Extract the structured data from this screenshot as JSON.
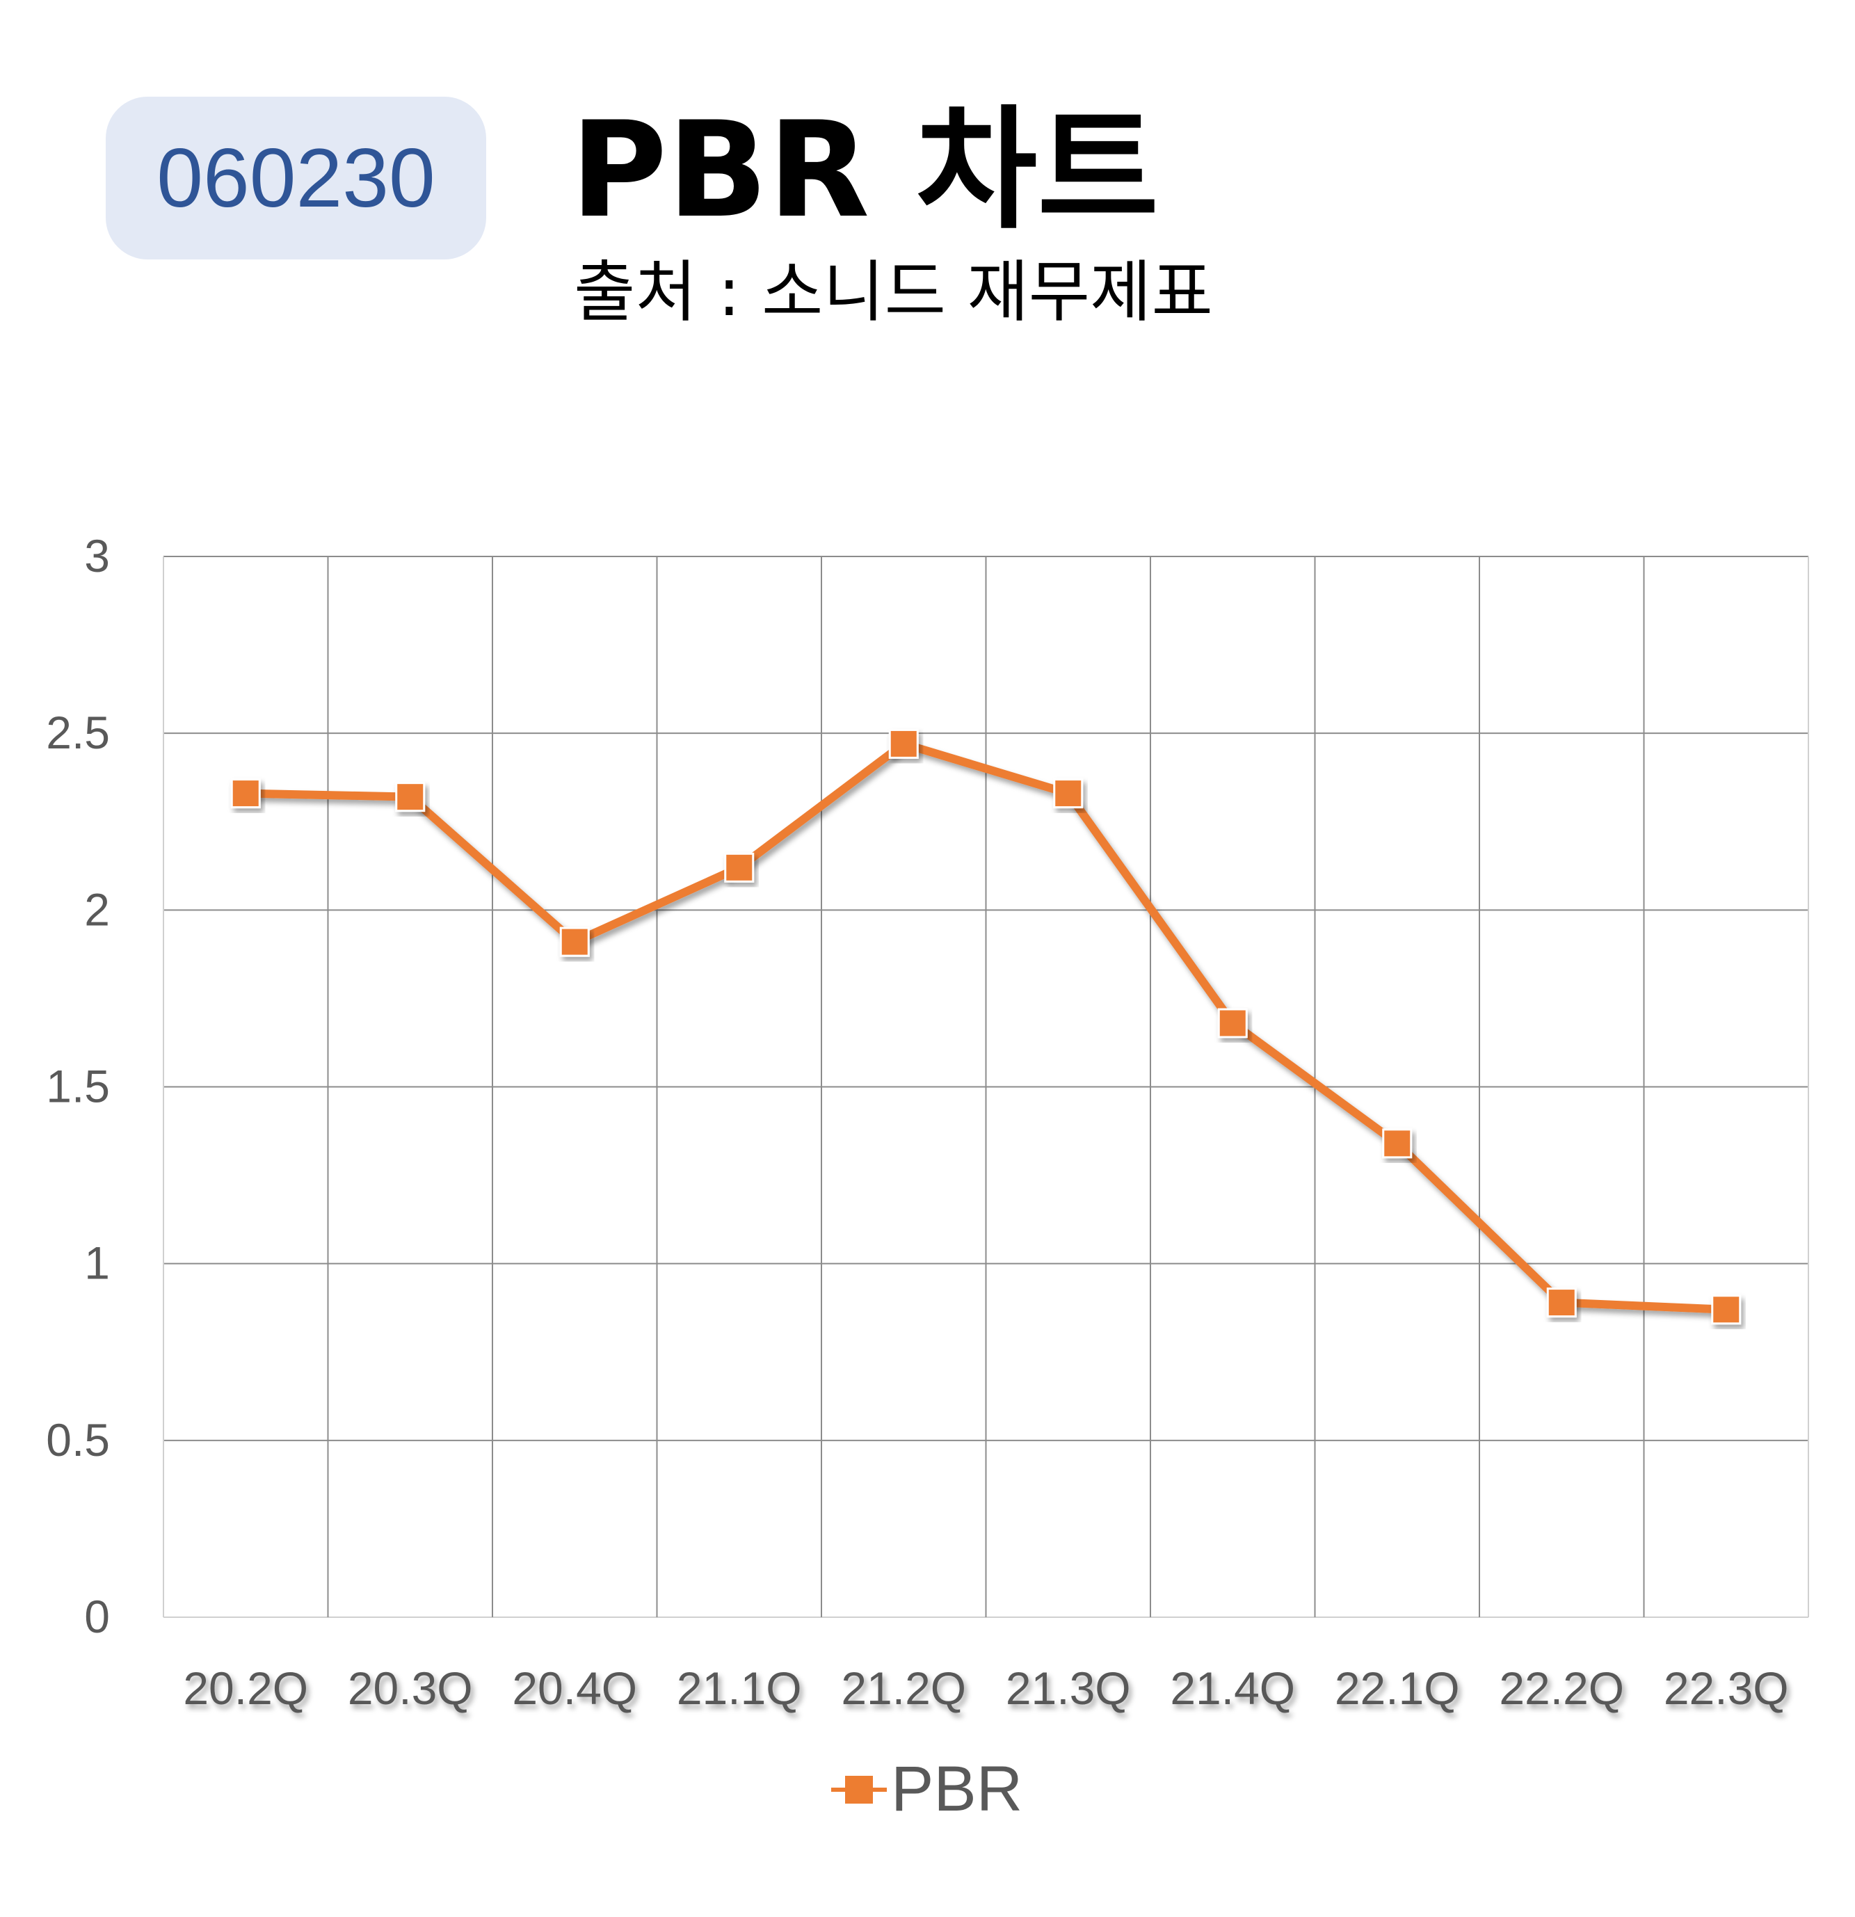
{
  "header": {
    "code": "060230",
    "title": "PBR 차트",
    "subtitle": "출처 : 소니드 재무제표"
  },
  "colors": {
    "series": "#ed7d31",
    "badge_bg": "#e3e9f5",
    "badge_text": "#2f5597",
    "grid": "#8c8c8c",
    "axis_text": "#595959"
  },
  "chart_data": {
    "type": "line",
    "categories": [
      "20.2Q",
      "20.3Q",
      "20.4Q",
      "21.1Q",
      "21.2Q",
      "21.3Q",
      "21.4Q",
      "22.1Q",
      "22.2Q",
      "22.3Q"
    ],
    "series": [
      {
        "name": "PBR",
        "values": [
          2.33,
          2.32,
          1.91,
          2.12,
          2.47,
          2.33,
          1.68,
          1.34,
          0.89,
          0.87
        ]
      }
    ],
    "yticks": [
      "0",
      "0.5",
      "1",
      "1.5",
      "2",
      "2.5",
      "3"
    ],
    "ylim": [
      0,
      3
    ],
    "grid": true,
    "legend": "bottom",
    "marker": "square"
  }
}
